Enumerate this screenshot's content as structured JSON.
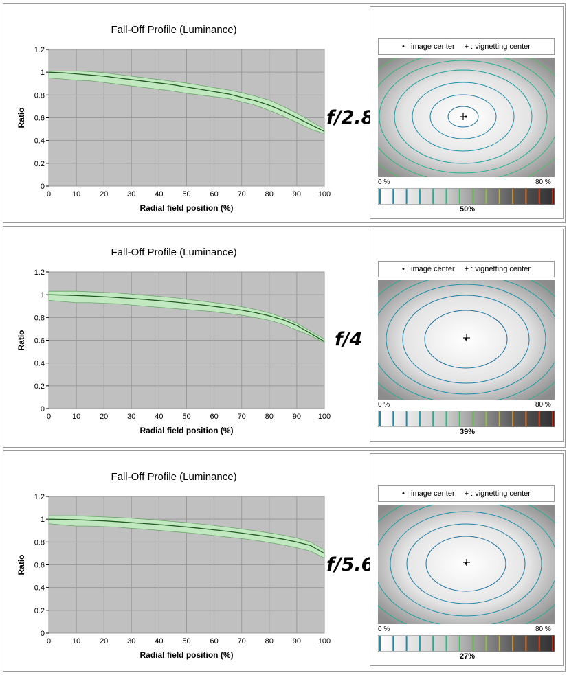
{
  "panels": [
    {
      "aperture": "f/2.8",
      "vignetting": {
        "legend_dot": "• : image center",
        "legend_plus": "+ : vignetting center",
        "scale_min": "0 %",
        "scale_max": "80 %",
        "percent": "50%"
      }
    },
    {
      "aperture": "f/4",
      "vignetting": {
        "legend_dot": "• : image center",
        "legend_plus": "+ : vignetting center",
        "scale_min": "0 %",
        "scale_max": "80 %",
        "percent": "39%"
      }
    },
    {
      "aperture": "f/5.6",
      "vignetting": {
        "legend_dot": "• : image center",
        "legend_plus": "+ : vignetting center",
        "scale_min": "0 %",
        "scale_max": "80 %",
        "percent": "27%"
      }
    }
  ],
  "colors": {
    "plot_bg": "#c0c0c0",
    "band_fill": "#c2e8c2",
    "band_edge": "#6aa56a",
    "line": "#1f5a1f",
    "colorbar_ticks": [
      "#1a8ab0",
      "#1a8ab0",
      "#1a8ab0",
      "#1aa0a8",
      "#20b090",
      "#28b880",
      "#40c060",
      "#60c040",
      "#90c040",
      "#c0b040",
      "#d89030",
      "#e07020",
      "#e04818",
      "#d82010"
    ]
  },
  "chart_data": [
    {
      "type": "line",
      "title": "Fall-Off Profile (Luminance)",
      "xlabel": "Radial field position (%)",
      "ylabel": "Ratio",
      "xlim": [
        0,
        100
      ],
      "ylim": [
        0,
        1.2
      ],
      "xticks": [
        "0",
        "10",
        "20",
        "30",
        "40",
        "50",
        "60",
        "70",
        "80",
        "90",
        "100"
      ],
      "yticks": [
        "0",
        "0.2",
        "0.4",
        "0.6",
        "0.8",
        "1",
        "1.2"
      ],
      "grid": true,
      "x": [
        0,
        5,
        10,
        15,
        20,
        25,
        30,
        35,
        40,
        45,
        50,
        55,
        60,
        65,
        70,
        75,
        80,
        85,
        90,
        95,
        100
      ],
      "series": [
        {
          "values": [
            1.0,
            0.995,
            0.985,
            0.975,
            0.965,
            0.95,
            0.935,
            0.92,
            0.905,
            0.89,
            0.87,
            0.85,
            0.83,
            0.81,
            0.78,
            0.75,
            0.71,
            0.66,
            0.6,
            0.54,
            0.48
          ]
        }
      ],
      "band_upper": [
        1.01,
        1.01,
        1.01,
        1.005,
        0.995,
        0.98,
        0.965,
        0.95,
        0.935,
        0.92,
        0.905,
        0.885,
        0.865,
        0.845,
        0.82,
        0.79,
        0.755,
        0.7,
        0.64,
        0.57,
        0.5
      ],
      "band_lower": [
        0.95,
        0.94,
        0.93,
        0.925,
        0.91,
        0.895,
        0.88,
        0.865,
        0.85,
        0.835,
        0.815,
        0.8,
        0.785,
        0.77,
        0.74,
        0.71,
        0.665,
        0.615,
        0.56,
        0.5,
        0.46
      ]
    },
    {
      "type": "line",
      "title": "Fall-Off Profile (Luminance)",
      "xlabel": "Radial field position (%)",
      "ylabel": "Ratio",
      "xlim": [
        0,
        100
      ],
      "ylim": [
        0,
        1.2
      ],
      "xticks": [
        "0",
        "10",
        "20",
        "30",
        "40",
        "50",
        "60",
        "70",
        "80",
        "90",
        "100"
      ],
      "yticks": [
        "0",
        "0.2",
        "0.4",
        "0.6",
        "0.8",
        "1",
        "1.2"
      ],
      "grid": true,
      "x": [
        0,
        5,
        10,
        15,
        20,
        25,
        30,
        35,
        40,
        45,
        50,
        55,
        60,
        65,
        70,
        75,
        80,
        85,
        90,
        95,
        100
      ],
      "series": [
        {
          "values": [
            1.0,
            0.997,
            0.993,
            0.988,
            0.982,
            0.975,
            0.967,
            0.958,
            0.948,
            0.937,
            0.925,
            0.912,
            0.898,
            0.882,
            0.864,
            0.842,
            0.815,
            0.78,
            0.73,
            0.66,
            0.59
          ]
        }
      ],
      "band_upper": [
        1.03,
        1.03,
        1.03,
        1.025,
        1.02,
        1.015,
        1.005,
        0.995,
        0.985,
        0.975,
        0.96,
        0.945,
        0.93,
        0.915,
        0.895,
        0.87,
        0.84,
        0.8,
        0.75,
        0.68,
        0.61
      ],
      "band_lower": [
        0.95,
        0.94,
        0.93,
        0.93,
        0.925,
        0.92,
        0.91,
        0.9,
        0.89,
        0.88,
        0.87,
        0.86,
        0.85,
        0.835,
        0.82,
        0.8,
        0.775,
        0.74,
        0.69,
        0.64,
        0.58
      ]
    },
    {
      "type": "line",
      "title": "Fall-Off Profile (Luminance)",
      "xlabel": "Radial field position (%)",
      "ylabel": "Ratio",
      "xlim": [
        0,
        100
      ],
      "ylim": [
        0,
        1.2
      ],
      "xticks": [
        "0",
        "10",
        "20",
        "30",
        "40",
        "50",
        "60",
        "70",
        "80",
        "90",
        "100"
      ],
      "yticks": [
        "0",
        "0.2",
        "0.4",
        "0.6",
        "0.8",
        "1",
        "1.2"
      ],
      "grid": true,
      "x": [
        0,
        5,
        10,
        15,
        20,
        25,
        30,
        35,
        40,
        45,
        50,
        55,
        60,
        65,
        70,
        75,
        80,
        85,
        90,
        95,
        100
      ],
      "series": [
        {
          "values": [
            1.0,
            0.998,
            0.995,
            0.99,
            0.985,
            0.978,
            0.97,
            0.962,
            0.953,
            0.943,
            0.932,
            0.92,
            0.907,
            0.893,
            0.878,
            0.862,
            0.845,
            0.825,
            0.8,
            0.77,
            0.7
          ]
        }
      ],
      "band_upper": [
        1.03,
        1.03,
        1.03,
        1.025,
        1.02,
        1.015,
        1.008,
        1.0,
        0.99,
        0.98,
        0.97,
        0.958,
        0.945,
        0.93,
        0.915,
        0.898,
        0.88,
        0.86,
        0.835,
        0.8,
        0.73
      ],
      "band_lower": [
        0.96,
        0.95,
        0.94,
        0.94,
        0.935,
        0.93,
        0.92,
        0.912,
        0.902,
        0.892,
        0.882,
        0.87,
        0.857,
        0.843,
        0.83,
        0.815,
        0.795,
        0.775,
        0.75,
        0.72,
        0.66
      ]
    }
  ]
}
